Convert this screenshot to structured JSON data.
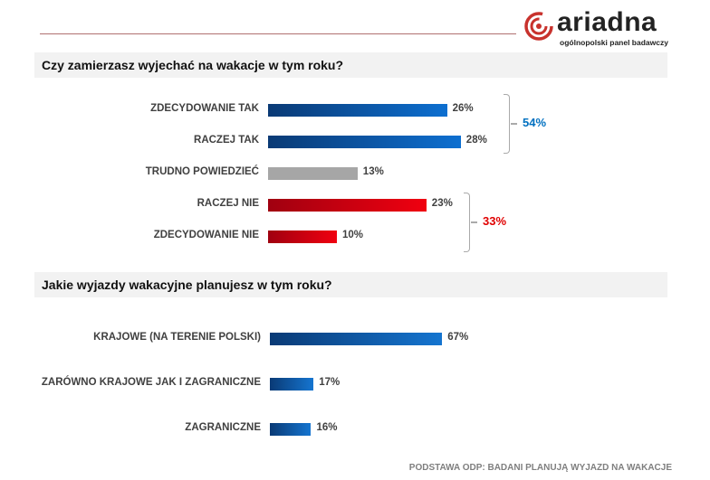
{
  "logo": {
    "name": "ariadna",
    "tagline": "ogólnopolski panel badawczy",
    "color": "#c8322d"
  },
  "chart_data": [
    {
      "type": "bar",
      "orientation": "horizontal",
      "title": "Czy zamierzasz wyjechać na wakacje w tym roku?",
      "categories": [
        "ZDECYDOWANIE TAK",
        "RACZEJ TAK",
        "TRUDNO POWIEDZIEĆ",
        "RACZEJ NIE",
        "ZDECYDOWANIE NIE"
      ],
      "values": [
        26,
        28,
        13,
        23,
        10
      ],
      "value_labels": [
        "26%",
        "28%",
        "13%",
        "23%",
        "10%"
      ],
      "colors": [
        "blue",
        "blue",
        "gray",
        "red",
        "red"
      ],
      "groups": [
        {
          "label": "54%",
          "members": [
            "ZDECYDOWANIE TAK",
            "RACZEJ TAK"
          ],
          "color": "#0070c0"
        },
        {
          "label": "33%",
          "members": [
            "RACZEJ NIE",
            "ZDECYDOWANIE NIE"
          ],
          "color": "#e00000"
        }
      ],
      "unit": "%"
    },
    {
      "type": "bar",
      "orientation": "horizontal",
      "title": "Jakie wyjazdy wakacyjne planujesz w tym roku?",
      "categories": [
        "KRAJOWE (NA TERENIE POLSKI)",
        "ZARÓWNO KRAJOWE JAK I ZAGRANICZNE",
        "ZAGRANICZNE"
      ],
      "values": [
        67,
        17,
        16
      ],
      "value_labels": [
        "67%",
        "17%",
        "16%"
      ],
      "colors": [
        "blue",
        "blue",
        "blue"
      ],
      "unit": "%"
    }
  ],
  "footer": "PODSTAWA ODP: BADANI PLANUJĄ WYJAZD NA WAKACJE"
}
